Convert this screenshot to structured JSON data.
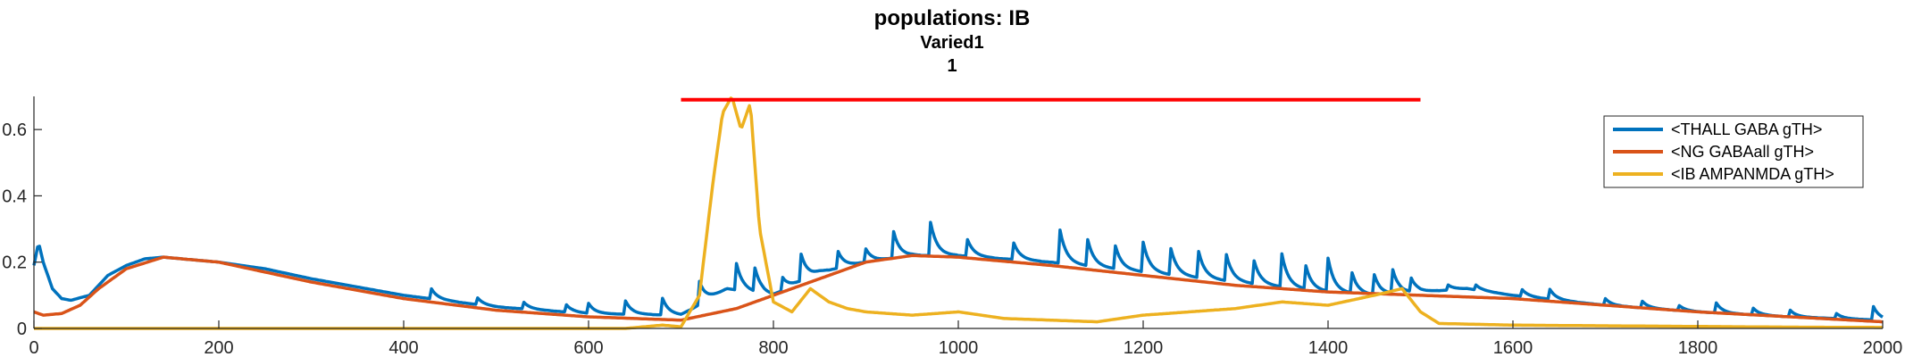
{
  "chart_data": {
    "type": "line",
    "title": "populations: IB",
    "subtitle_lines": [
      "Varied1",
      "1"
    ],
    "xlabel": "",
    "ylabel": "",
    "xlim": [
      0,
      2000
    ],
    "ylim": [
      0,
      0.7
    ],
    "x_ticks": [
      0,
      200,
      400,
      600,
      800,
      1000,
      1200,
      1400,
      1600,
      1800,
      2000
    ],
    "x_tick_labels": [
      "0",
      "200",
      "400",
      "600",
      "800",
      "1000",
      "1200",
      "1400",
      "1600",
      "1800",
      "2000"
    ],
    "y_ticks": [
      0,
      0.2,
      0.4,
      0.6
    ],
    "y_tick_labels": [
      "0",
      "0.2",
      "0.4",
      "0.6"
    ],
    "grid": false,
    "legend_position": "top-right",
    "annotation": {
      "type": "hline",
      "y": 0.69,
      "x_start": 700,
      "x_end": 1500,
      "color": "#ff0000"
    },
    "series": [
      {
        "name": "<THALL GABA gTH>",
        "color": "#0072bd",
        "x": [
          0,
          5,
          10,
          20,
          30,
          40,
          60,
          80,
          100,
          120,
          140,
          160,
          200,
          250,
          300,
          400,
          500,
          600,
          700,
          750,
          800,
          850,
          900,
          950,
          1000,
          1050,
          1100,
          1200,
          1300,
          1400,
          1450,
          1500,
          1550,
          1600,
          1700,
          1800,
          1900,
          2000
        ],
        "values": [
          0.19,
          0.26,
          0.2,
          0.12,
          0.09,
          0.085,
          0.1,
          0.16,
          0.19,
          0.21,
          0.215,
          0.21,
          0.2,
          0.18,
          0.15,
          0.1,
          0.065,
          0.045,
          0.04,
          0.12,
          0.1,
          0.17,
          0.2,
          0.22,
          0.22,
          0.21,
          0.2,
          0.17,
          0.14,
          0.11,
          0.1,
          0.11,
          0.12,
          0.1,
          0.07,
          0.05,
          0.035,
          0.025
        ],
        "spikes": [
          {
            "x": 430,
            "h": 0.03
          },
          {
            "x": 480,
            "h": 0.02
          },
          {
            "x": 530,
            "h": 0.02
          },
          {
            "x": 575,
            "h": 0.025
          },
          {
            "x": 600,
            "h": 0.03
          },
          {
            "x": 640,
            "h": 0.04
          },
          {
            "x": 680,
            "h": 0.05
          },
          {
            "x": 720,
            "h": 0.07
          },
          {
            "x": 760,
            "h": 0.08
          },
          {
            "x": 780,
            "h": 0.07
          },
          {
            "x": 810,
            "h": 0.04
          },
          {
            "x": 830,
            "h": 0.08
          },
          {
            "x": 870,
            "h": 0.05
          },
          {
            "x": 900,
            "h": 0.04
          },
          {
            "x": 930,
            "h": 0.08
          },
          {
            "x": 970,
            "h": 0.1
          },
          {
            "x": 1010,
            "h": 0.05
          },
          {
            "x": 1060,
            "h": 0.05
          },
          {
            "x": 1110,
            "h": 0.1
          },
          {
            "x": 1140,
            "h": 0.08
          },
          {
            "x": 1170,
            "h": 0.07
          },
          {
            "x": 1200,
            "h": 0.09
          },
          {
            "x": 1230,
            "h": 0.08
          },
          {
            "x": 1260,
            "h": 0.08
          },
          {
            "x": 1290,
            "h": 0.08
          },
          {
            "x": 1320,
            "h": 0.07
          },
          {
            "x": 1350,
            "h": 0.1
          },
          {
            "x": 1375,
            "h": 0.08
          },
          {
            "x": 1400,
            "h": 0.1
          },
          {
            "x": 1425,
            "h": 0.07
          },
          {
            "x": 1450,
            "h": 0.06
          },
          {
            "x": 1470,
            "h": 0.07
          },
          {
            "x": 1490,
            "h": 0.04
          },
          {
            "x": 1530,
            "h": 0.015
          },
          {
            "x": 1560,
            "h": 0.015
          },
          {
            "x": 1610,
            "h": 0.02
          },
          {
            "x": 1640,
            "h": 0.03
          },
          {
            "x": 1700,
            "h": 0.02
          },
          {
            "x": 1740,
            "h": 0.02
          },
          {
            "x": 1780,
            "h": 0.015
          },
          {
            "x": 1820,
            "h": 0.03
          },
          {
            "x": 1860,
            "h": 0.02
          },
          {
            "x": 1900,
            "h": 0.02
          },
          {
            "x": 1950,
            "h": 0.015
          },
          {
            "x": 1990,
            "h": 0.04
          }
        ]
      },
      {
        "name": "<NG GABAall gTH>",
        "color": "#d95319",
        "x": [
          0,
          10,
          30,
          50,
          70,
          100,
          140,
          200,
          300,
          400,
          500,
          600,
          700,
          760,
          800,
          850,
          900,
          950,
          1000,
          1100,
          1200,
          1300,
          1400,
          1500,
          1600,
          1700,
          1800,
          1900,
          2000
        ],
        "values": [
          0.05,
          0.04,
          0.045,
          0.07,
          0.12,
          0.18,
          0.215,
          0.2,
          0.14,
          0.09,
          0.055,
          0.035,
          0.025,
          0.06,
          0.1,
          0.15,
          0.2,
          0.22,
          0.215,
          0.19,
          0.16,
          0.13,
          0.11,
          0.1,
          0.09,
          0.07,
          0.05,
          0.035,
          0.02
        ]
      },
      {
        "name": "<IB AMPANMDA gTH>",
        "color": "#edb120",
        "x": [
          0,
          640,
          680,
          700,
          720,
          735,
          745,
          755,
          765,
          775,
          785,
          800,
          820,
          840,
          860,
          880,
          900,
          950,
          1000,
          1050,
          1100,
          1150,
          1200,
          1250,
          1300,
          1350,
          1400,
          1450,
          1480,
          1500,
          1520,
          1600,
          1700,
          1800,
          1900,
          2000
        ],
        "values": [
          0.0,
          0.0,
          0.01,
          0.005,
          0.1,
          0.45,
          0.65,
          0.7,
          0.6,
          0.68,
          0.3,
          0.08,
          0.05,
          0.12,
          0.08,
          0.06,
          0.05,
          0.04,
          0.05,
          0.03,
          0.025,
          0.02,
          0.04,
          0.05,
          0.06,
          0.08,
          0.07,
          0.1,
          0.12,
          0.05,
          0.015,
          0.01,
          0.008,
          0.006,
          0.004,
          0.003
        ]
      }
    ]
  }
}
